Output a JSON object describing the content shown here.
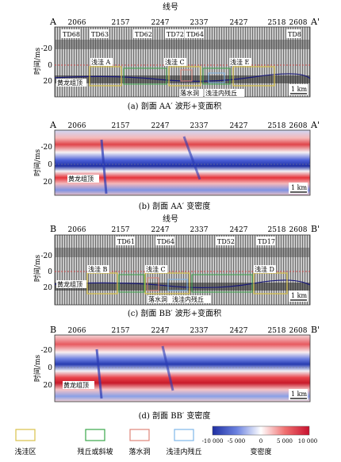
{
  "xlabel": "线号",
  "ylabel": "时间/ms",
  "xticks": [
    "2066",
    "2157",
    "2247",
    "2337",
    "2427",
    "2518",
    "2608"
  ],
  "yticks_wave": [
    "-20",
    "0",
    "20"
  ],
  "yticks_var": [
    "-20",
    "0",
    "20"
  ],
  "scale_label": "1 km",
  "horizon_label": "黄龙组顶",
  "panels": [
    {
      "id": "a",
      "left_label": "A",
      "right_label": "A'",
      "show_xlabel": true,
      "caption": "(a) 剖面 AA′ 波形+变面积",
      "wells": [
        "TD68",
        "TD63",
        "TD62",
        "TD72",
        "TD64",
        "TD8"
      ],
      "boxes": [
        "浅洼 A",
        "浅洼 C",
        "浅洼 E"
      ],
      "annotations": [
        "落水洞",
        "浅洼内残丘"
      ]
    },
    {
      "id": "b",
      "left_label": "A",
      "right_label": "A'",
      "caption": "(b) 剖面 AA′ 变密度"
    },
    {
      "id": "c",
      "left_label": "B",
      "right_label": "B'",
      "show_xlabel": true,
      "caption": "(c) 剖面 BB′ 波形+变面积",
      "wells": [
        "TD61",
        "TD64",
        "TD52",
        "TD17"
      ],
      "boxes": [
        "浅洼 B",
        "浅洼 C",
        "浅洼 D"
      ],
      "annotations": [
        "落水洞",
        "浅洼内残丘"
      ]
    },
    {
      "id": "d",
      "left_label": "B",
      "right_label": "B'",
      "caption": "(d) 剖面 BB′ 变密度"
    }
  ],
  "legend": {
    "items": [
      {
        "label": "浅洼区",
        "color": "#d9c24a"
      },
      {
        "label": "残丘或斜坡",
        "color": "#3aa64a"
      },
      {
        "label": "落水洞",
        "color": "#e0867a"
      },
      {
        "label": "浅洼内残丘",
        "color": "#7fb7e8"
      }
    ],
    "colorbar_ticks": [
      "-10 000",
      "-5 000",
      "0",
      "5 000",
      "10 000"
    ],
    "colorbar_label": "变密度"
  }
}
